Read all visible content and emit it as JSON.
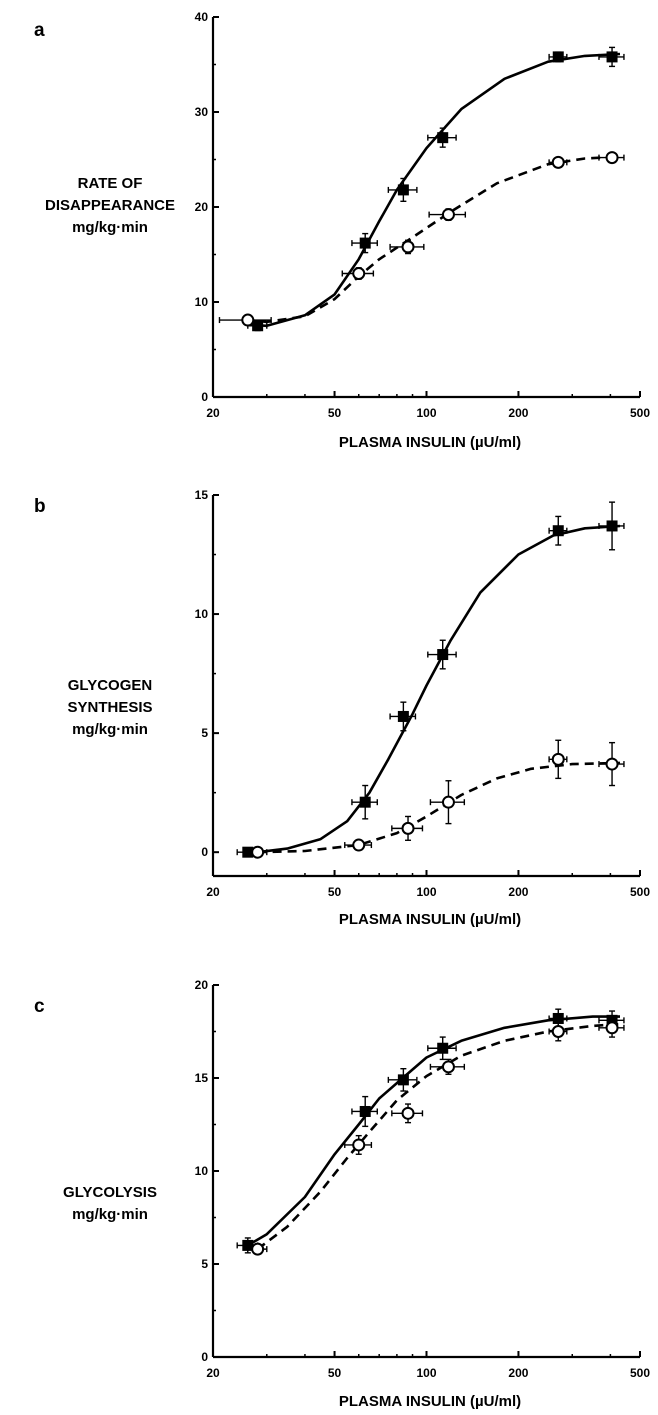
{
  "chart_data": [
    {
      "panel_label": "a",
      "type": "line",
      "ylabel_lines": [
        "RATE OF",
        "DISAPPEARANCE",
        "mg/kg·min"
      ],
      "xlabel": "PLASMA INSULIN (µU/ml)",
      "xscale": "log",
      "xlim": [
        20,
        500
      ],
      "ylim": [
        0,
        40
      ],
      "xticks": [
        20,
        50,
        100,
        200,
        500
      ],
      "yticks": [
        0,
        10,
        20,
        30,
        40
      ],
      "series": [
        {
          "marker": "filled-square",
          "line": "solid",
          "points": [
            {
              "x": 28,
              "y": 7.5,
              "xerr": 2,
              "yerr": 0.5
            },
            {
              "x": 63,
              "y": 16.2,
              "xerr": 6,
              "yerr": 1.0
            },
            {
              "x": 84,
              "y": 21.8,
              "xerr": 9,
              "yerr": 1.2
            },
            {
              "x": 113,
              "y": 27.3,
              "xerr": 12,
              "yerr": 1.0
            },
            {
              "x": 270,
              "y": 35.8,
              "xerr": 18,
              "yerr": 0.5
            },
            {
              "x": 405,
              "y": 35.8,
              "xerr": 38,
              "yerr": 1.0
            }
          ],
          "curve": [
            [
              26,
              7.6
            ],
            [
              30,
              7.5
            ],
            [
              40,
              8.6
            ],
            [
              50,
              10.8
            ],
            [
              60,
              14.5
            ],
            [
              70,
              18.5
            ],
            [
              80,
              21.8
            ],
            [
              100,
              26.2
            ],
            [
              130,
              30.3
            ],
            [
              180,
              33.5
            ],
            [
              250,
              35.3
            ],
            [
              330,
              35.9
            ],
            [
              430,
              36.1
            ]
          ]
        },
        {
          "marker": "open-circle",
          "line": "dashed",
          "points": [
            {
              "x": 26,
              "y": 8.1,
              "xerr": 5,
              "yerr": 0.3
            },
            {
              "x": 60,
              "y": 13.0,
              "xerr": 7,
              "yerr": 0.6
            },
            {
              "x": 87,
              "y": 15.8,
              "xerr": 11,
              "yerr": 0.7
            },
            {
              "x": 118,
              "y": 19.2,
              "xerr": 16,
              "yerr": 0.6
            },
            {
              "x": 270,
              "y": 24.7,
              "xerr": 18,
              "yerr": 0.4
            },
            {
              "x": 405,
              "y": 25.2,
              "xerr": 38,
              "yerr": 0.5
            }
          ],
          "curve": [
            [
              26,
              8.1
            ],
            [
              30,
              7.9
            ],
            [
              40,
              8.5
            ],
            [
              50,
              10.3
            ],
            [
              60,
              12.7
            ],
            [
              70,
              14.5
            ],
            [
              90,
              16.8
            ],
            [
              120,
              19.5
            ],
            [
              170,
              22.5
            ],
            [
              250,
              24.5
            ],
            [
              330,
              25.1
            ],
            [
              430,
              25.3
            ]
          ]
        }
      ]
    },
    {
      "panel_label": "b",
      "type": "line",
      "ylabel_lines": [
        "GLYCOGEN",
        "SYNTHESIS",
        "mg/kg·min"
      ],
      "xlabel": "PLASMA INSULIN (µU/ml)",
      "xscale": "log",
      "xlim": [
        20,
        500
      ],
      "ylim": [
        -1,
        15
      ],
      "xticks": [
        20,
        50,
        100,
        200,
        500
      ],
      "yticks": [
        0,
        5,
        10,
        15
      ],
      "series": [
        {
          "marker": "filled-square",
          "line": "solid",
          "points": [
            {
              "x": 26,
              "y": 0.0,
              "xerr": 2,
              "yerr": 0
            },
            {
              "x": 63,
              "y": 2.1,
              "xerr": 6,
              "yerr": 0.7
            },
            {
              "x": 84,
              "y": 5.7,
              "xerr": 8,
              "yerr": 0.6
            },
            {
              "x": 113,
              "y": 8.3,
              "xerr": 12,
              "yerr": 0.6
            },
            {
              "x": 270,
              "y": 13.5,
              "xerr": 18,
              "yerr": 0.6
            },
            {
              "x": 405,
              "y": 13.7,
              "xerr": 38,
              "yerr": 1.0
            }
          ],
          "curve": [
            [
              28,
              0.0
            ],
            [
              35,
              0.15
            ],
            [
              45,
              0.55
            ],
            [
              55,
              1.3
            ],
            [
              65,
              2.5
            ],
            [
              75,
              3.9
            ],
            [
              90,
              5.8
            ],
            [
              100,
              7.0
            ],
            [
              120,
              8.9
            ],
            [
              150,
              10.9
            ],
            [
              200,
              12.5
            ],
            [
              260,
              13.3
            ],
            [
              330,
              13.6
            ],
            [
              430,
              13.7
            ]
          ]
        },
        {
          "marker": "open-circle",
          "line": "dashed",
          "points": [
            {
              "x": 28,
              "y": 0.0,
              "xerr": 2,
              "yerr": 0
            },
            {
              "x": 60,
              "y": 0.3,
              "xerr": 6,
              "yerr": 0.2
            },
            {
              "x": 87,
              "y": 1.0,
              "xerr": 10,
              "yerr": 0.5
            },
            {
              "x": 118,
              "y": 2.1,
              "xerr": 15,
              "yerr": 0.9
            },
            {
              "x": 270,
              "y": 3.9,
              "xerr": 18,
              "yerr": 0.8
            },
            {
              "x": 405,
              "y": 3.7,
              "xerr": 38,
              "yerr": 0.9
            }
          ],
          "curve": [
            [
              28,
              0.0
            ],
            [
              40,
              0.05
            ],
            [
              60,
              0.3
            ],
            [
              80,
              0.8
            ],
            [
              100,
              1.5
            ],
            [
              130,
              2.4
            ],
            [
              170,
              3.1
            ],
            [
              220,
              3.5
            ],
            [
              300,
              3.7
            ],
            [
              430,
              3.75
            ]
          ]
        }
      ]
    },
    {
      "panel_label": "c",
      "type": "line",
      "ylabel_lines": [
        "GLYCOLYSIS",
        "mg/kg·min"
      ],
      "xlabel": "PLASMA INSULIN (µU/ml)",
      "xscale": "log",
      "xlim": [
        20,
        500
      ],
      "ylim": [
        0,
        20
      ],
      "xticks": [
        20,
        50,
        100,
        200,
        500
      ],
      "yticks": [
        0,
        5,
        10,
        15,
        20
      ],
      "series": [
        {
          "marker": "filled-square",
          "line": "solid",
          "points": [
            {
              "x": 26,
              "y": 6.0,
              "xerr": 2,
              "yerr": 0.4
            },
            {
              "x": 63,
              "y": 13.2,
              "xerr": 6,
              "yerr": 0.8
            },
            {
              "x": 84,
              "y": 14.9,
              "xerr": 9,
              "yerr": 0.6
            },
            {
              "x": 113,
              "y": 16.6,
              "xerr": 12,
              "yerr": 0.6
            },
            {
              "x": 270,
              "y": 18.2,
              "xerr": 18,
              "yerr": 0.5
            },
            {
              "x": 405,
              "y": 18.1,
              "xerr": 38,
              "yerr": 0.5
            }
          ],
          "curve": [
            [
              26,
              6.0
            ],
            [
              30,
              6.6
            ],
            [
              40,
              8.6
            ],
            [
              50,
              10.9
            ],
            [
              60,
              12.5
            ],
            [
              70,
              13.9
            ],
            [
              85,
              15.1
            ],
            [
              100,
              16.1
            ],
            [
              130,
              17.0
            ],
            [
              180,
              17.7
            ],
            [
              250,
              18.1
            ],
            [
              350,
              18.3
            ],
            [
              430,
              18.3
            ]
          ]
        },
        {
          "marker": "open-circle",
          "line": "dashed",
          "points": [
            {
              "x": 28,
              "y": 5.8,
              "xerr": 2,
              "yerr": 0.2
            },
            {
              "x": 60,
              "y": 11.4,
              "xerr": 6,
              "yerr": 0.5
            },
            {
              "x": 87,
              "y": 13.1,
              "xerr": 10,
              "yerr": 0.5
            },
            {
              "x": 118,
              "y": 15.6,
              "xerr": 15,
              "yerr": 0.4
            },
            {
              "x": 270,
              "y": 17.5,
              "xerr": 18,
              "yerr": 0.5
            },
            {
              "x": 405,
              "y": 17.7,
              "xerr": 38,
              "yerr": 0.5
            }
          ],
          "curve": [
            [
              28,
              5.8
            ],
            [
              35,
              7.0
            ],
            [
              45,
              8.9
            ],
            [
              55,
              10.7
            ],
            [
              65,
              12.1
            ],
            [
              80,
              13.8
            ],
            [
              100,
              15.1
            ],
            [
              130,
              16.2
            ],
            [
              180,
              17.0
            ],
            [
              250,
              17.5
            ],
            [
              350,
              17.8
            ],
            [
              430,
              17.9
            ]
          ]
        }
      ]
    }
  ],
  "colors": {
    "ink": "#000000",
    "background": "#ffffff"
  }
}
